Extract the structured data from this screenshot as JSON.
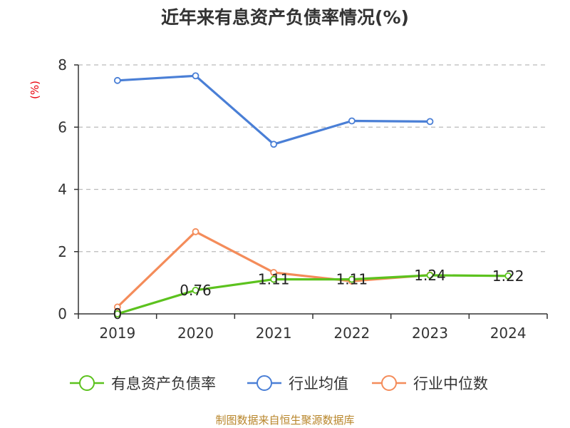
{
  "chart_data": {
    "type": "line",
    "title": "近年来有息资产负债率情况(%)",
    "ylabel": "(%)",
    "xlabel": "",
    "categories": [
      "2019",
      "2020",
      "2021",
      "2022",
      "2023",
      "2024"
    ],
    "ylim": [
      0,
      8
    ],
    "yticks": [
      0,
      2,
      4,
      6,
      8
    ],
    "grid": true,
    "legend_position": "bottom",
    "series": [
      {
        "name": "有息资产负债率",
        "color": "#5cc21e",
        "values": [
          0,
          0.76,
          1.11,
          1.11,
          1.24,
          1.22
        ],
        "data_labels": [
          "0",
          "0.76",
          "1.11",
          "1.11",
          "1.24",
          "1.22"
        ]
      },
      {
        "name": "行业均值",
        "color": "#4a7fd6",
        "values": [
          7.5,
          7.65,
          5.45,
          6.2,
          6.18,
          null
        ]
      },
      {
        "name": "行业中位数",
        "color": "#f48c5a",
        "values": [
          0.22,
          2.64,
          1.33,
          1.05,
          1.25,
          null
        ]
      }
    ]
  },
  "source_text": "制图数据来自恒生聚源数据库"
}
